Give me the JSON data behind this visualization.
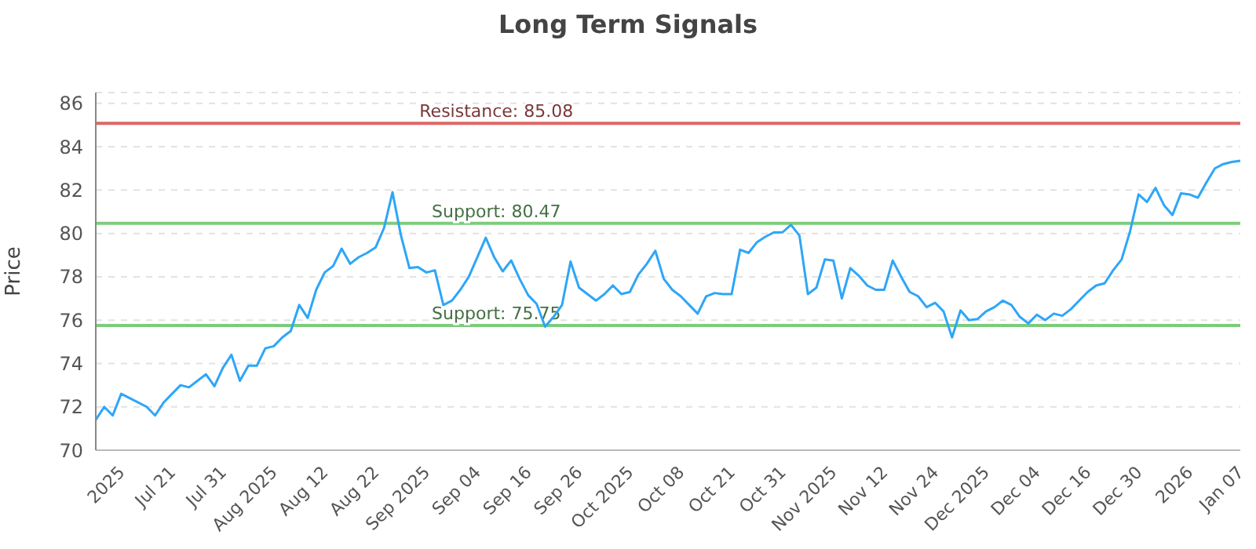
{
  "chart_data": {
    "type": "line",
    "title": "Long Term Signals",
    "ylabel": "Price",
    "categories": [
      null,
      null,
      null,
      "2025",
      null,
      null,
      null,
      null,
      null,
      "Jul 21",
      null,
      null,
      null,
      null,
      null,
      "Jul 31",
      null,
      null,
      null,
      null,
      null,
      "Aug 2025",
      null,
      null,
      null,
      null,
      null,
      "Aug 12",
      null,
      null,
      null,
      null,
      null,
      "Aug 22",
      null,
      null,
      null,
      null,
      null,
      "Sep 2025",
      null,
      null,
      null,
      null,
      null,
      "Sep 04",
      null,
      null,
      null,
      null,
      null,
      "Sep 16",
      null,
      null,
      null,
      null,
      null,
      "Sep 26",
      null,
      null,
      null,
      null,
      null,
      "Oct 2025",
      null,
      null,
      null,
      null,
      null,
      "Oct 08",
      null,
      null,
      null,
      null,
      null,
      "Oct 21",
      null,
      null,
      null,
      null,
      null,
      "Oct 31",
      null,
      null,
      null,
      null,
      null,
      "Nov 2025",
      null,
      null,
      null,
      null,
      null,
      "Nov 12",
      null,
      null,
      null,
      null,
      null,
      "Nov 24",
      null,
      null,
      null,
      null,
      null,
      "Dec 2025",
      null,
      null,
      null,
      null,
      null,
      "Dec 04",
      null,
      null,
      null,
      null,
      null,
      "Dec 16",
      null,
      null,
      null,
      null,
      null,
      "Dec 30",
      null,
      null,
      null,
      null,
      null,
      "2026",
      null,
      null,
      null,
      null,
      null,
      "Jan 07"
    ],
    "series": [
      {
        "color": "#2ea6f7",
        "values": [
          71.4,
          72.0,
          71.6,
          72.6,
          72.4,
          72.2,
          72.0,
          71.6,
          72.2,
          72.6,
          73.0,
          72.9,
          73.2,
          73.5,
          72.95,
          73.8,
          74.4,
          73.2,
          73.9,
          73.9,
          74.7,
          74.8,
          75.2,
          75.5,
          76.7,
          76.1,
          77.4,
          78.2,
          78.5,
          79.3,
          78.6,
          78.9,
          79.1,
          79.35,
          80.25,
          81.9,
          79.9,
          78.4,
          78.45,
          78.2,
          78.3,
          76.7,
          76.9,
          77.4,
          78.0,
          78.9,
          79.8,
          78.9,
          78.25,
          78.75,
          77.9,
          77.15,
          76.75,
          75.7,
          76.15,
          76.7,
          78.7,
          77.5,
          77.2,
          76.9,
          77.2,
          77.6,
          77.2,
          77.3,
          78.1,
          78.6,
          79.2,
          77.9,
          77.4,
          77.1,
          76.7,
          76.3,
          77.1,
          77.25,
          77.2,
          77.2,
          79.25,
          79.1,
          79.6,
          79.85,
          80.05,
          80.05,
          80.4,
          79.9,
          77.2,
          77.5,
          78.8,
          78.75,
          77.0,
          78.4,
          78.05,
          77.6,
          77.4,
          77.4,
          78.75,
          78.0,
          77.3,
          77.1,
          76.6,
          76.8,
          76.4,
          75.2,
          76.45,
          76.0,
          76.05,
          76.4,
          76.6,
          76.9,
          76.7,
          76.15,
          75.85,
          76.25,
          76.0,
          76.3,
          76.2,
          76.5,
          76.9,
          77.3,
          77.6,
          77.7,
          78.3,
          78.8,
          80.1,
          81.8,
          81.45,
          82.1,
          81.3,
          80.85,
          81.85,
          81.8,
          81.65,
          82.35,
          83.0,
          83.2,
          83.3,
          83.35
        ]
      }
    ],
    "ylim": [
      70,
      86.5
    ],
    "yticks": [
      70,
      72,
      74,
      76,
      78,
      80,
      82,
      84,
      86
    ],
    "grid": "y",
    "legend": false,
    "marker": "none",
    "line_style": "solid",
    "ref_lines": [
      {
        "axis": "y",
        "value": 85.08,
        "label": "Resistance: 85.08",
        "color": "#e06666"
      },
      {
        "axis": "y",
        "value": 80.47,
        "label": "Support: 80.47",
        "color": "#7ccc7c"
      },
      {
        "axis": "y",
        "value": 75.75,
        "label": "Support: 75.75",
        "color": "#7ccc7c"
      }
    ]
  }
}
